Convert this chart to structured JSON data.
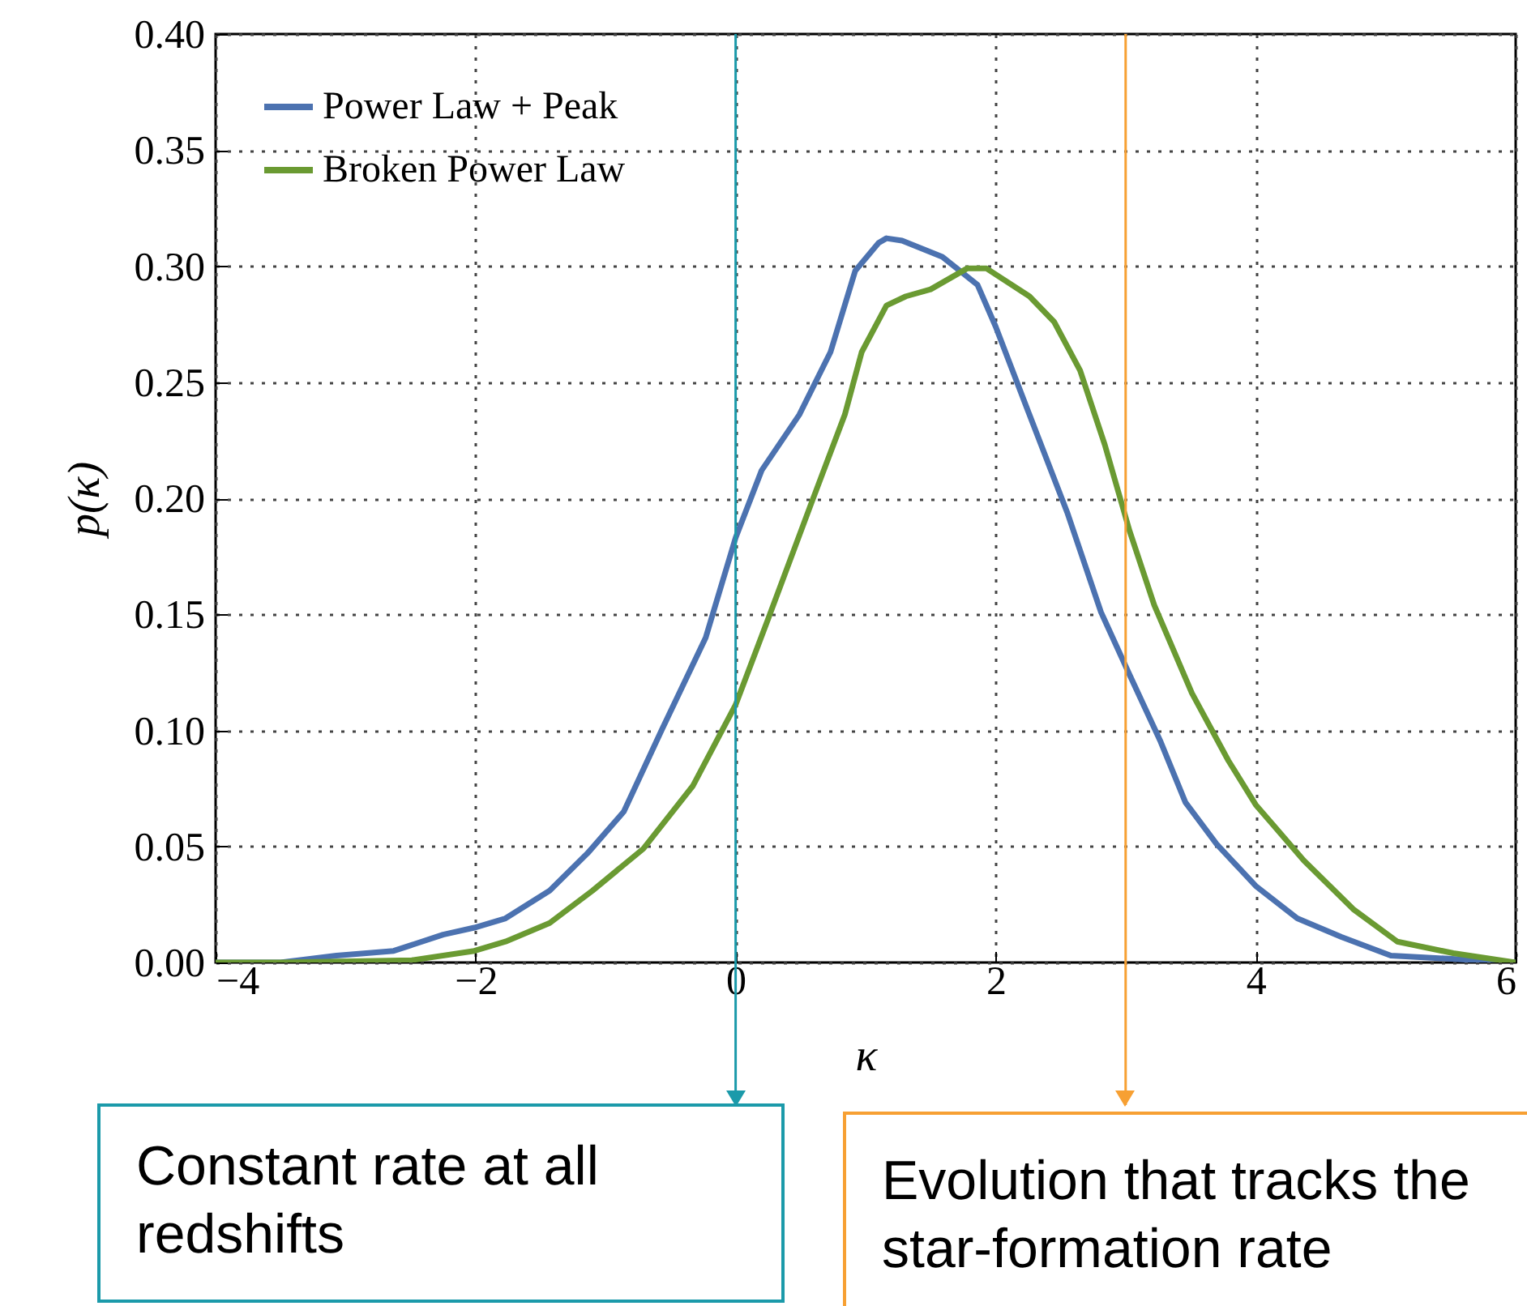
{
  "chart_data": {
    "type": "line",
    "xlabel": "κ",
    "ylabel": "p(κ)",
    "xlim": [
      -4,
      6
    ],
    "xticks": [
      {
        "value": -4,
        "label": "−4"
      },
      {
        "value": -2,
        "label": "−2"
      },
      0,
      2,
      4,
      6
    ],
    "ylim": [
      0,
      0.4
    ],
    "yticks": [
      {
        "value": 0,
        "label": "0.00"
      },
      0.05,
      {
        "value": 0.1,
        "label": "0.10"
      },
      0.15,
      {
        "value": 0.2,
        "label": "0.20"
      },
      0.25,
      {
        "value": 0.3,
        "label": "0.30"
      },
      0.35,
      {
        "value": 0.4,
        "label": "0.40"
      }
    ],
    "grid": true,
    "legend": "top left",
    "line_style": "solid",
    "series": [
      {
        "name": "Power Law + Peak",
        "color": "#4c72b0",
        "x": [
          -4,
          -3.5,
          -3.07,
          -2.63,
          -2.25,
          -2.01,
          -1.77,
          -1.43,
          -1.14,
          -0.86,
          -0.57,
          -0.23,
          0,
          0.2,
          0.49,
          0.73,
          0.92,
          1.1,
          1.16,
          1.28,
          1.59,
          1.86,
          2,
          2.26,
          2.55,
          2.81,
          3.03,
          3.27,
          3.46,
          3.7,
          4,
          4.32,
          4.66,
          5.04,
          6
        ],
        "values": [
          0,
          0,
          0.003,
          0.005,
          0.012,
          0.015,
          0.019,
          0.031,
          0.047,
          0.065,
          0.1,
          0.14,
          0.183,
          0.212,
          0.236,
          0.263,
          0.298,
          0.31,
          0.312,
          0.311,
          0.304,
          0.292,
          0.274,
          0.236,
          0.194,
          0.151,
          0.124,
          0.095,
          0.069,
          0.051,
          0.033,
          0.019,
          0.011,
          0.003,
          0
        ]
      },
      {
        "name": "Broken Power Law",
        "color": "#6a9a32",
        "x": [
          -4,
          -3.5,
          -2.49,
          -2.01,
          -1.77,
          -1.43,
          -1.1,
          -0.71,
          -0.33,
          0,
          0.25,
          0.59,
          0.84,
          0.97,
          1.16,
          1.31,
          1.5,
          1.78,
          1.93,
          2.26,
          2.45,
          2.65,
          2.84,
          3.03,
          3.22,
          3.51,
          3.79,
          4,
          4.37,
          4.75,
          5.09,
          5.52,
          6
        ],
        "values": [
          0,
          0,
          0.001,
          0.005,
          0.009,
          0.017,
          0.031,
          0.049,
          0.076,
          0.111,
          0.148,
          0.199,
          0.236,
          0.263,
          0.283,
          0.287,
          0.29,
          0.299,
          0.299,
          0.287,
          0.276,
          0.255,
          0.223,
          0.186,
          0.154,
          0.116,
          0.087,
          0.068,
          0.044,
          0.023,
          0.009,
          0.004,
          0
        ]
      }
    ],
    "ref_lines": [
      {
        "axis": "x",
        "value": 0,
        "label": "Constant rate at all redshifts",
        "color": "#1b9aaa"
      },
      {
        "axis": "x",
        "value": 3,
        "label": "Evolution that tracks the star-formation rate",
        "color": "#f7a033"
      }
    ]
  }
}
